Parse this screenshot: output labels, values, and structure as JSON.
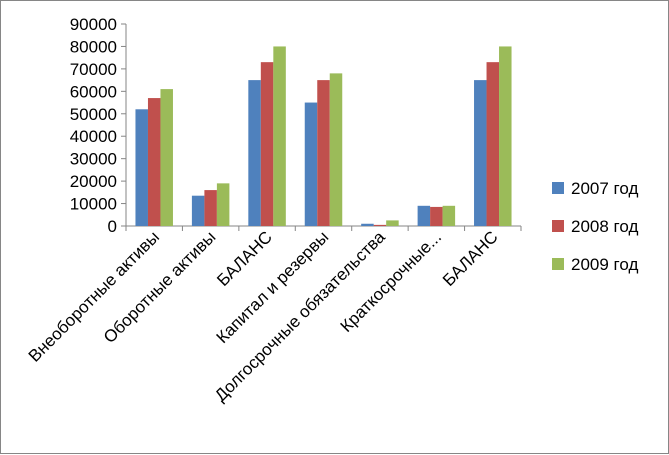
{
  "chart_data": {
    "type": "bar",
    "categories": [
      "Внеоборотные активы",
      "Оборотные активы",
      "БАЛАНС",
      "Капитал и резервы",
      "Долгосрочные обязательства",
      "Краткосрочные...",
      "БАЛАНС"
    ],
    "series": [
      {
        "name": "2007 год",
        "color": "#4F81BD",
        "values": [
          52000,
          13500,
          65000,
          55000,
          1000,
          9000,
          65000
        ]
      },
      {
        "name": "2008 год",
        "color": "#C0504D",
        "values": [
          57000,
          16000,
          73000,
          65000,
          500,
          8500,
          73000
        ]
      },
      {
        "name": "2009 год",
        "color": "#9BBB59",
        "values": [
          61000,
          19000,
          80000,
          68000,
          2500,
          9000,
          80000
        ]
      }
    ],
    "yticks": [
      "0",
      "10000",
      "20000",
      "30000",
      "40000",
      "50000",
      "60000",
      "70000",
      "80000",
      "90000"
    ],
    "ylim": [
      0,
      90000
    ],
    "grid": false,
    "legend": "right",
    "title": "",
    "xlabel": "",
    "ylabel": ""
  }
}
